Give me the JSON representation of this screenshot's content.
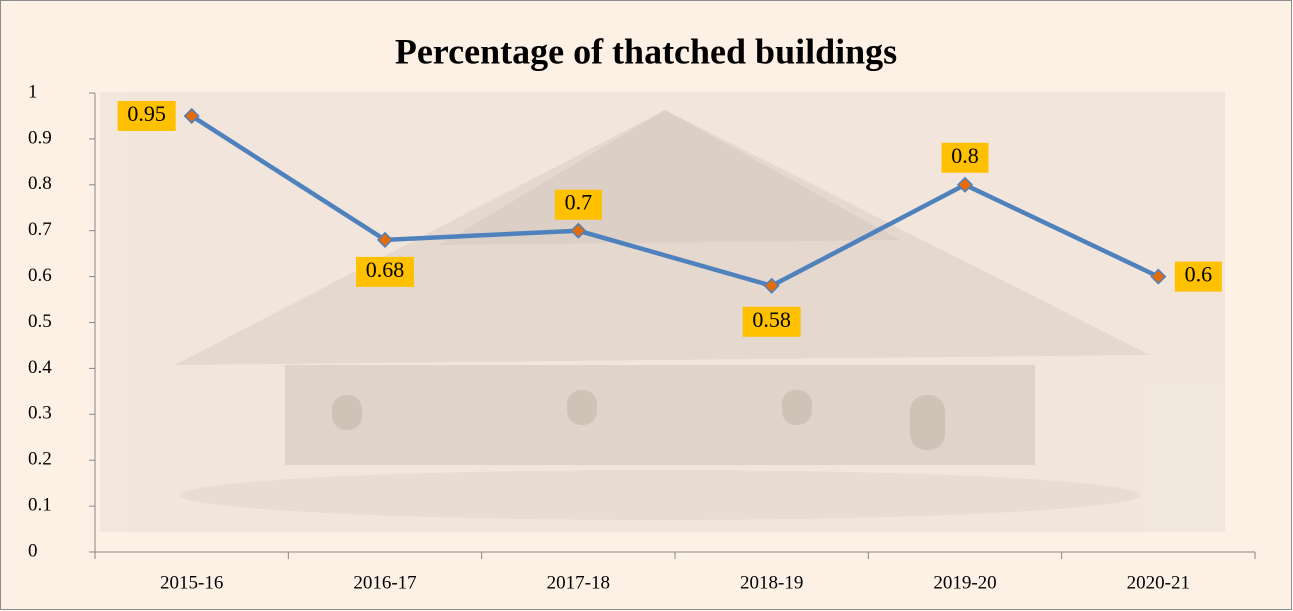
{
  "chart_data": {
    "type": "line",
    "title": "Percentage of thatched buildings",
    "categories": [
      "2015-16",
      "2016-17",
      "2017-18",
      "2018-19",
      "2019-20",
      "2020-21"
    ],
    "series": [
      {
        "name": "Percentage of thatched buildings",
        "color": "#4f81bd",
        "marker_color": "#e46c0a",
        "values": [
          0.95,
          0.68,
          0.7,
          0.58,
          0.8,
          0.6
        ]
      }
    ],
    "label_color": "#ffc000",
    "ylim": [
      0,
      1
    ],
    "yticks": [
      0,
      0.1,
      0.2,
      0.3,
      0.4,
      0.5,
      0.6,
      0.7,
      0.8,
      0.9,
      1
    ],
    "grid": false
  }
}
